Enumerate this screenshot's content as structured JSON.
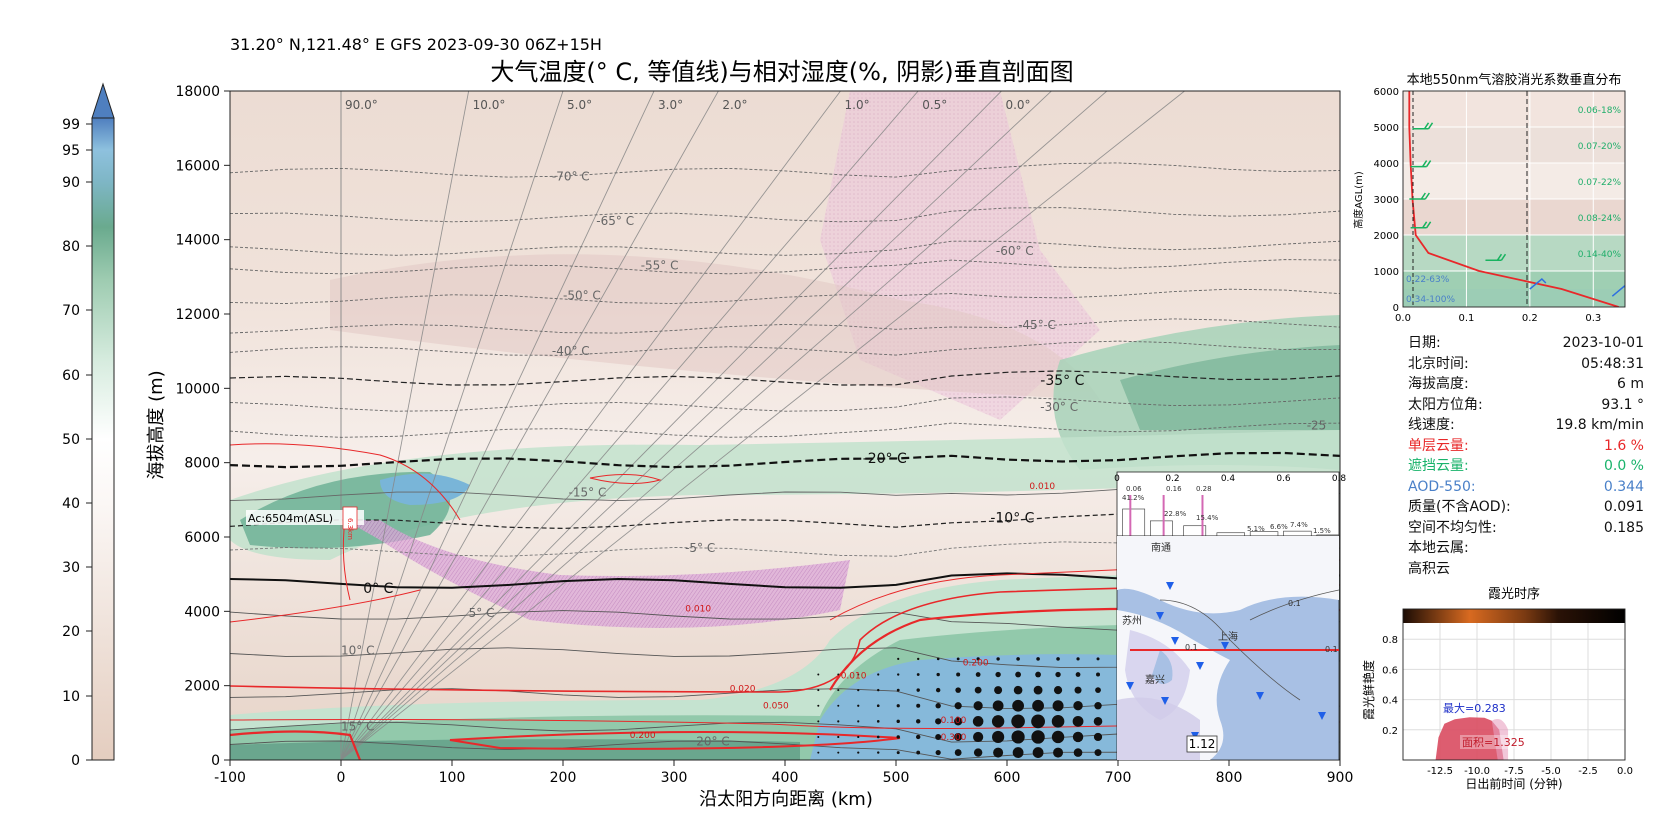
{
  "header": {
    "location_line": "31.20° N,121.48° E GFS 2023-09-30 06Z+15H",
    "main_title": "大气温度(° C, 等值线)与相对湿度(%, 阴影)垂直剖面图"
  },
  "colorbar": {
    "ticks": [
      0,
      10,
      20,
      30,
      40,
      50,
      60,
      70,
      80,
      90,
      95,
      99
    ]
  },
  "chart_data": [
    {
      "type": "heatmap",
      "name": "main-section",
      "title": "大气温度(° C, 等值线)与相对湿度(%, 阴影)垂直剖面图",
      "xlabel": "沿太阳方向距离 (km)",
      "ylabel": "海拔高度 (m)",
      "xlim": [
        -100,
        900
      ],
      "ylim": [
        0,
        18000
      ],
      "xticks": [
        -100,
        0,
        100,
        200,
        300,
        400,
        500,
        600,
        700,
        800,
        900
      ],
      "yticks": [
        0,
        2000,
        4000,
        6000,
        8000,
        10000,
        12000,
        14000,
        16000,
        18000
      ],
      "ray_labels": [
        "90.0°",
        "10.0°",
        "5.0°",
        "3.0°",
        "2.0°",
        "1.0°",
        "0.5°",
        "0.0°"
      ],
      "isotherm_labels": [
        {
          "text": "-70° C",
          "x": 190,
          "y": 15700
        },
        {
          "text": "-65° C",
          "x": 230,
          "y": 14500
        },
        {
          "text": "-60° C",
          "x": 590,
          "y": 13700
        },
        {
          "text": "-55° C",
          "x": 270,
          "y": 13300
        },
        {
          "text": "-50° C",
          "x": 200,
          "y": 12500
        },
        {
          "text": "-45° C",
          "x": 610,
          "y": 11700
        },
        {
          "text": "-40° C",
          "x": 190,
          "y": 11000
        },
        {
          "text": "-35° C",
          "x": 630,
          "y": 10200
        },
        {
          "text": "-30° C",
          "x": 630,
          "y": 9500
        },
        {
          "text": "-25",
          "x": 870,
          "y": 9000
        },
        {
          "text": "-20° C",
          "x": 470,
          "y": 8100
        },
        {
          "text": "-15° C",
          "x": 205,
          "y": 7200
        },
        {
          "text": "-10° C",
          "x": 585,
          "y": 6500
        },
        {
          "text": "-5° C",
          "x": 310,
          "y": 5700
        },
        {
          "text": "0° C",
          "x": 20,
          "y": 4600
        },
        {
          "text": "5° C",
          "x": 115,
          "y": 3950
        },
        {
          "text": "10° C",
          "x": 0,
          "y": 2950
        },
        {
          "text": "15° C",
          "x": 0,
          "y": 900
        },
        {
          "text": "20° C",
          "x": 320,
          "y": 500
        }
      ],
      "cloud_labels": [
        "0.010",
        "0.010",
        "0.020",
        "0.050",
        "0.100",
        "0.200",
        "0.300",
        "0.200",
        "0.010"
      ],
      "annotation": "Ac:6504m(ASL)",
      "annotation_tag": "6.3km",
      "inset_bars": {
        "xticks": [
          0,
          0.2,
          0.4,
          0.6,
          0.8
        ],
        "labels": [
          "0.06",
          "0.16",
          "0.28",
          "41.2%",
          "22.8%",
          "15.4%",
          "5.1%",
          "6.6%",
          "7.4%",
          "1.5%"
        ]
      },
      "inset_map": {
        "labels": [
          "南通",
          "苏州",
          "上海",
          "嘉兴",
          "0.1",
          "0.1",
          "0.1"
        ],
        "value_box": "1.12"
      }
    },
    {
      "type": "line",
      "name": "aerosol-profile",
      "title": "本地550nm气溶胶消光系数垂直分布",
      "xlabel": "",
      "ylabel": "高度AGL(m)",
      "xlim": [
        0,
        0.35
      ],
      "ylim": [
        0,
        6000
      ],
      "xticks": [
        "0.0",
        "0.1",
        "0.2",
        "0.3"
      ],
      "yticks": [
        0,
        1000,
        2000,
        3000,
        4000,
        5000,
        6000
      ],
      "x": [
        0.34,
        0.25,
        0.12,
        0.04,
        0.02,
        0.015,
        0.012,
        0.01,
        0.01
      ],
      "y": [
        0,
        500,
        1000,
        1500,
        2000,
        3000,
        4000,
        5000,
        6000
      ],
      "band_labels": [
        "0.06-18%",
        "0.07-20%",
        "0.07-22%",
        "0.08-24%",
        "0.14-40%",
        "0.22-63%",
        "0.34-100%"
      ]
    },
    {
      "type": "area",
      "name": "glow-timeline",
      "title": "霞光时序",
      "xlabel": "日出前时间 (分钟)",
      "ylabel": "霞光鲜艳度",
      "xlim": [
        -15,
        0
      ],
      "ylim": [
        0,
        1
      ],
      "xticks": [
        "-12.5",
        "-10.0",
        "-7.5",
        "-5.0",
        "-2.5",
        "0.0"
      ],
      "yticks": [
        "0.2",
        "0.4",
        "0.6",
        "0.8"
      ],
      "x": [
        -12.8,
        -12.6,
        -12.2,
        -11.5,
        -10.5,
        -9.5,
        -9.0,
        -8.5,
        -8.2
      ],
      "y": [
        0.0,
        0.15,
        0.24,
        0.27,
        0.283,
        0.28,
        0.26,
        0.2,
        0.0
      ],
      "max_label": "最大=0.283",
      "area_label": "面积=1.325"
    }
  ],
  "info_panel": {
    "rows": [
      {
        "k": "日期:",
        "v": "2023-10-01",
        "c": ""
      },
      {
        "k": "北京时间:",
        "v": "05:48:31",
        "c": ""
      },
      {
        "k": "海拔高度:",
        "v": "6 m",
        "c": ""
      },
      {
        "k": "太阳方位角:",
        "v": "93.1 °",
        "c": ""
      },
      {
        "k": "线速度:",
        "v": "19.8 km/min",
        "c": ""
      },
      {
        "k": "单层云量:",
        "v": "1.6 %",
        "c": "red"
      },
      {
        "k": "遮挡云量:",
        "v": "0.0 %",
        "c": "green"
      },
      {
        "k": "AOD-550:",
        "v": "0.344",
        "c": "blue"
      },
      {
        "k": "质量(不含AOD):",
        "v": "0.091",
        "c": ""
      },
      {
        "k": "空间不均匀性:",
        "v": "0.185",
        "c": ""
      },
      {
        "k": "本地云属:",
        "v": "",
        "c": ""
      },
      {
        "k": "高积云",
        "v": "",
        "c": ""
      }
    ]
  }
}
